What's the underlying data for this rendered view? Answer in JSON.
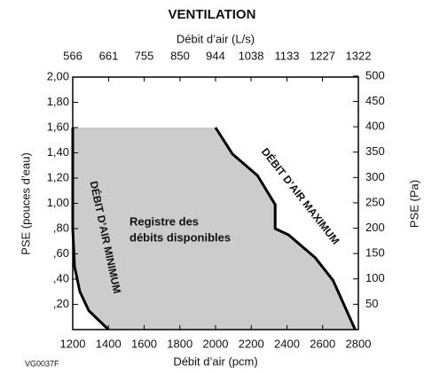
{
  "chart_data": {
    "type": "line",
    "title": "VENTILATION",
    "x2label": "Débit d’air (L/s)",
    "xlabel": "Débit d’air (pcm)",
    "ylabel": "PSE (pouces d’eau)",
    "y2label": "PSE (Pa)",
    "code": "VG0037F",
    "annotation": [
      "Registre des",
      "débits disponibles"
    ],
    "xlim": [
      1200,
      2800
    ],
    "xticks": [
      1200,
      1400,
      1600,
      1800,
      2000,
      2200,
      2400,
      2600,
      2800
    ],
    "x2lim": [
      566,
      1322
    ],
    "x2ticks": [
      566,
      661,
      755,
      850,
      944,
      1038,
      1133,
      1227,
      1322
    ],
    "ylim": [
      0,
      2
    ],
    "yticks": [
      {
        "value": 2.0,
        "label": "2,00"
      },
      {
        "value": 1.8,
        "label": "1,80"
      },
      {
        "value": 1.6,
        "label": "1,60"
      },
      {
        "value": 1.4,
        "label": "1,40"
      },
      {
        "value": 1.2,
        "label": "1,20"
      },
      {
        "value": 1.0,
        "label": "1,00"
      },
      {
        "value": 0.8,
        "label": ",80"
      },
      {
        "value": 0.6,
        "label": ",60"
      },
      {
        "value": 0.4,
        "label": ",40"
      },
      {
        "value": 0.2,
        "label": ",20"
      }
    ],
    "y2lim": [
      0,
      498
    ],
    "y2ticks": [
      500,
      450,
      400,
      350,
      300,
      250,
      200,
      150,
      100,
      50
    ],
    "grid": false,
    "fill_color": "#cccccc",
    "series": [
      {
        "name": "DÉBIT D’AIR MINIMUM",
        "color": "#000000",
        "x": [
          1200,
          1200,
          1210,
          1240,
          1290,
          1400
        ],
        "values": [
          1.6,
          0.8,
          0.5,
          0.3,
          0.15,
          0
        ]
      },
      {
        "name": "DÉBIT D’AIR MAXIMUM",
        "color": "#000000",
        "x": [
          2000,
          2095,
          2235,
          2334,
          2334,
          2409,
          2558,
          2658,
          2782
        ],
        "values": [
          1.6,
          1.39,
          1.22,
          0.99,
          0.8,
          0.75,
          0.57,
          0.39,
          0
        ]
      }
    ]
  }
}
